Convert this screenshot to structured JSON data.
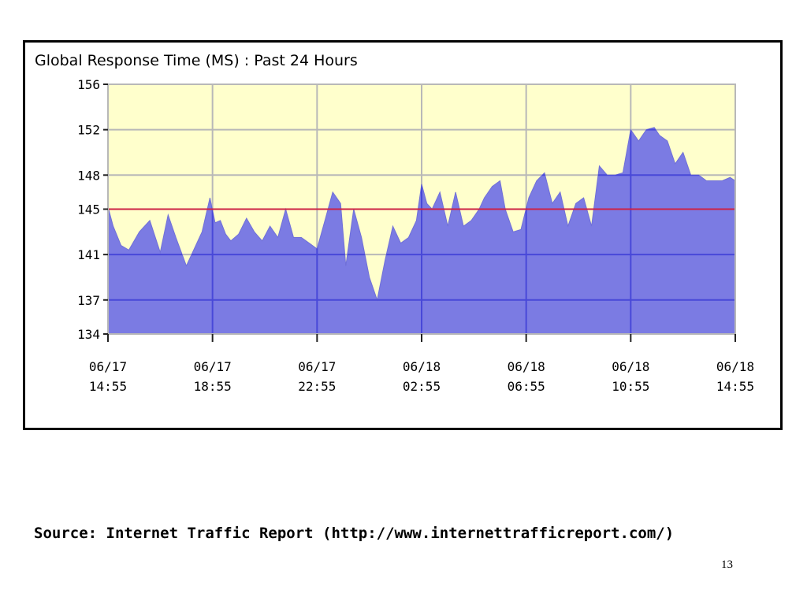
{
  "chart_data": {
    "type": "area",
    "title": "Global Response Time (MS) : Past 24 Hours",
    "xlabel": "",
    "ylabel": "",
    "x_tick_labels": [
      [
        "06/17",
        "14:55"
      ],
      [
        "06/17",
        "18:55"
      ],
      [
        "06/17",
        "22:55"
      ],
      [
        "06/18",
        "02:55"
      ],
      [
        "06/18",
        "06:55"
      ],
      [
        "06/18",
        "10:55"
      ],
      [
        "06/18",
        "14:55"
      ]
    ],
    "y_ticks": [
      134,
      137,
      141,
      145,
      148,
      152,
      156
    ],
    "ylim": [
      134,
      156
    ],
    "xlim_hours": [
      0,
      24
    ],
    "grid": true,
    "reference_line": 145,
    "series": [
      {
        "x": [
          0,
          0.2,
          0.5,
          0.8,
          1.2,
          1.6,
          2.0,
          2.3,
          2.6,
          3.0,
          3.3,
          3.6,
          3.9,
          4.1,
          4.3,
          4.5,
          4.7,
          5.0,
          5.3,
          5.6,
          5.9,
          6.2,
          6.5,
          6.8,
          7.1,
          7.4,
          7.7,
          8.0,
          8.3,
          8.6,
          8.9,
          9.1,
          9.4,
          9.7,
          10.0,
          10.3,
          10.6,
          10.9,
          11.2,
          11.5,
          11.8,
          12.0,
          12.2,
          12.4,
          12.7,
          13.0,
          13.3,
          13.6,
          13.9,
          14.2,
          14.4,
          14.7,
          15.0,
          15.2,
          15.5,
          15.8,
          16.1,
          16.4,
          16.7,
          17.0,
          17.3,
          17.6,
          17.9,
          18.2,
          18.5,
          18.8,
          19.1,
          19.4,
          19.7,
          20.0,
          20.3,
          20.6,
          20.9,
          21.1,
          21.4,
          21.7,
          22.0,
          22.3,
          22.6,
          22.9,
          23.2,
          23.5,
          23.8,
          24.0
        ],
        "y": [
          145.2,
          143.5,
          141.8,
          141.4,
          143.0,
          144.0,
          141.2,
          144.5,
          142.5,
          140.0,
          141.5,
          143.0,
          146.0,
          143.8,
          144.0,
          142.8,
          142.2,
          142.8,
          144.2,
          143.0,
          142.2,
          143.5,
          142.5,
          145.0,
          142.5,
          142.5,
          142.0,
          141.5,
          144.0,
          146.5,
          145.5,
          140.0,
          145.0,
          142.5,
          139.0,
          137.0,
          140.5,
          143.5,
          142.0,
          142.5,
          144.0,
          147.2,
          145.5,
          145.0,
          146.5,
          143.5,
          146.5,
          143.5,
          144.0,
          145.0,
          146.0,
          147.0,
          147.5,
          145.0,
          143.0,
          143.2,
          146.0,
          147.5,
          148.2,
          145.5,
          146.5,
          143.5,
          145.5,
          146.0,
          143.5,
          148.8,
          148.0,
          148.0,
          148.2,
          152.0,
          151.0,
          152.0,
          152.2,
          151.5,
          151.0,
          149.0,
          150.0,
          148.0,
          148.0,
          147.5,
          147.5,
          147.5,
          147.8,
          147.5
        ]
      }
    ],
    "colors": {
      "plot_background": "#ffffcc",
      "area_fill": "#7b7be3",
      "area_edge": "#7070d8",
      "gridline_upper": "#b8b8b8",
      "gridline_lower": "#4848d8",
      "reference_line": "#cc2244",
      "axis_tick": "#222222"
    }
  },
  "source_note": "Source: Internet Traffic Report (http://www.internettrafficreport.com/)",
  "slide_number": "13"
}
